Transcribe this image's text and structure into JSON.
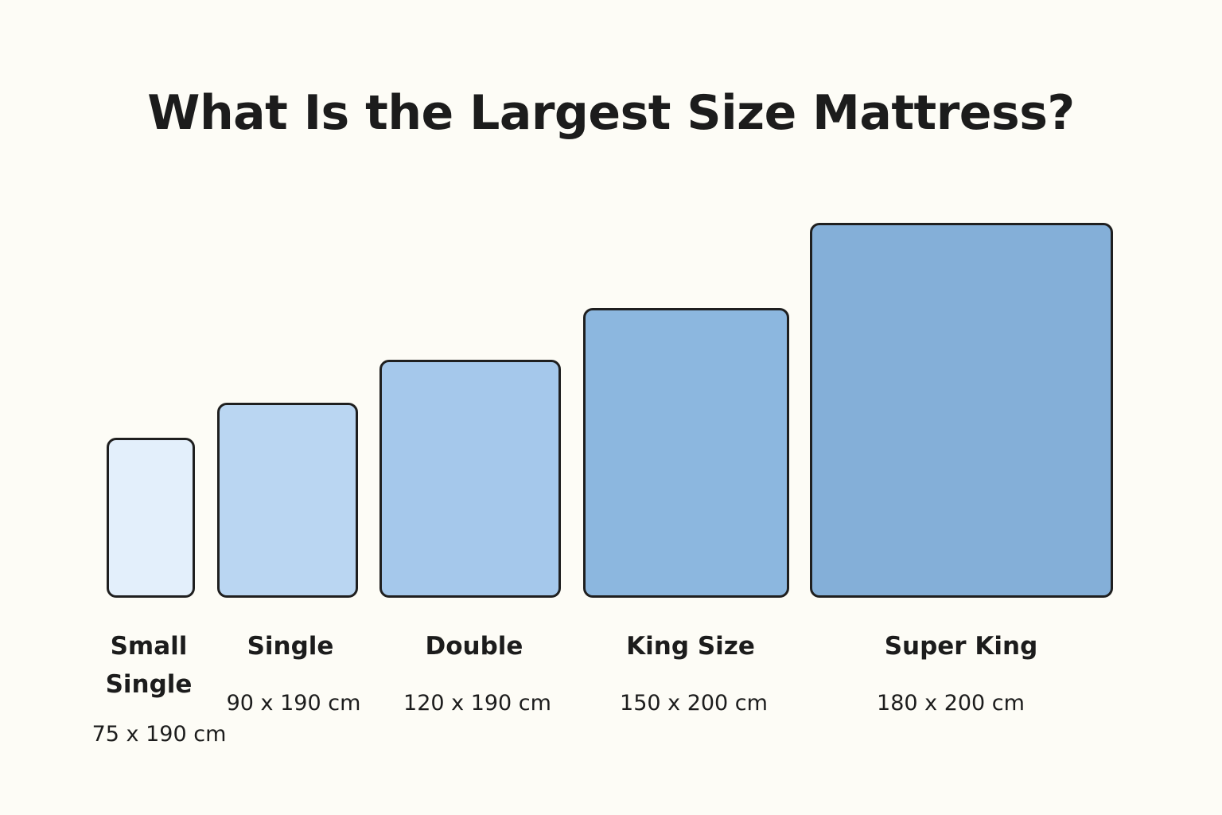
{
  "title": "What Is the Largest Size Mattress?",
  "mattresses": [
    {
      "name": "Small Single",
      "dimensions": "75 x 190 cm",
      "width_cm": 75,
      "length_cm": 190,
      "color": "#e3effb"
    },
    {
      "name": "Single",
      "dimensions": "90 x 190 cm",
      "width_cm": 90,
      "length_cm": 190,
      "color": "#bad6f2"
    },
    {
      "name": "Double",
      "dimensions": "120 x 190 cm",
      "width_cm": 120,
      "length_cm": 190,
      "color": "#a5c8eb"
    },
    {
      "name": "King Size",
      "dimensions": "150 x 200 cm",
      "width_cm": 150,
      "length_cm": 200,
      "color": "#8cb7df"
    },
    {
      "name": "Super King",
      "dimensions": "180 x 200 cm",
      "width_cm": 180,
      "length_cm": 200,
      "color": "#84afd8"
    }
  ]
}
